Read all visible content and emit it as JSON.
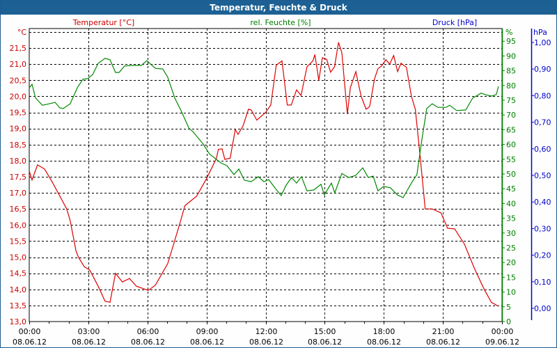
{
  "window": {
    "title": "Temperatur, Feuchte & Druck"
  },
  "chart_data": {
    "type": "line",
    "title": "Temperatur, Feuchte & Druck",
    "xlim_hours": [
      0,
      24
    ],
    "x_ticks": [
      {
        "time": "00:00",
        "date": "08.06.12"
      },
      {
        "time": "03:00",
        "date": "08.06.12"
      },
      {
        "time": "06:00",
        "date": "08.06.12"
      },
      {
        "time": "09:00",
        "date": "08.06.12"
      },
      {
        "time": "12:00",
        "date": "08.06.12"
      },
      {
        "time": "15:00",
        "date": "08.06.12"
      },
      {
        "time": "18:00",
        "date": "08.06.12"
      },
      {
        "time": "21:00",
        "date": "08.06.12"
      },
      {
        "time": "00:00",
        "date": "09.06.12"
      }
    ],
    "axes": {
      "temperature": {
        "label": "Temperatur [°C]",
        "unit": "°C",
        "ylim": [
          13.0,
          22.0
        ],
        "ticks": [
          "13,0",
          "13,5",
          "14,0",
          "14,5",
          "15,0",
          "15,5",
          "16,0",
          "16,5",
          "17,0",
          "17,5",
          "18,0",
          "18,5",
          "19,0",
          "19,5",
          "20,0",
          "20,5",
          "21,0",
          "21,5"
        ],
        "color": "#cc0000"
      },
      "humidity": {
        "label": "rel. Feuchte [%]",
        "unit": "%",
        "ylim": [
          0,
          100
        ],
        "ticks": [
          "0",
          "5",
          "10",
          "15",
          "20",
          "25",
          "30",
          "35",
          "40",
          "45",
          "50",
          "55",
          "60",
          "65",
          "70",
          "75",
          "80",
          "85",
          "90",
          "95"
        ],
        "color": "#008000"
      },
      "pressure": {
        "label": "Druck [hPa]",
        "unit": "hPa",
        "ylim": [
          0,
          1.0
        ],
        "ticks": [
          "0,00",
          "0,10",
          "0,20",
          "0,30",
          "0,40",
          "0,50",
          "0,60",
          "0,70",
          "0,80",
          "0,90",
          "1,00"
        ],
        "color": "#0000cc"
      }
    },
    "grid": true,
    "series": [
      {
        "name": "Temperatur [°C]",
        "axis": "temperature",
        "color": "#dd0000",
        "points": [
          [
            0,
            17.68
          ],
          [
            0.14,
            17.4
          ],
          [
            0.42,
            17.87
          ],
          [
            0.78,
            17.74
          ],
          [
            1.2,
            17.3
          ],
          [
            1.55,
            16.9
          ],
          [
            1.9,
            16.5
          ],
          [
            2.08,
            16.14
          ],
          [
            2.37,
            15.2
          ],
          [
            2.5,
            15.0
          ],
          [
            2.8,
            14.7
          ],
          [
            3.07,
            14.6
          ],
          [
            3.5,
            14.1
          ],
          [
            3.85,
            13.63
          ],
          [
            4.1,
            13.6
          ],
          [
            4.38,
            14.5
          ],
          [
            4.73,
            14.23
          ],
          [
            5.09,
            14.34
          ],
          [
            5.44,
            14.1
          ],
          [
            6.04,
            13.97
          ],
          [
            6.4,
            14.13
          ],
          [
            7.03,
            14.8
          ],
          [
            7.4,
            15.55
          ],
          [
            7.67,
            16.1
          ],
          [
            7.9,
            16.6
          ],
          [
            8.5,
            16.9
          ],
          [
            9.0,
            17.44
          ],
          [
            9.5,
            18.07
          ],
          [
            9.6,
            18.35
          ],
          [
            9.79,
            18.37
          ],
          [
            9.93,
            18.04
          ],
          [
            10.2,
            18.08
          ],
          [
            10.46,
            18.97
          ],
          [
            10.6,
            18.82
          ],
          [
            10.85,
            19.08
          ],
          [
            11.13,
            19.6
          ],
          [
            11.27,
            19.58
          ],
          [
            11.55,
            19.26
          ],
          [
            12.0,
            19.5
          ],
          [
            12.26,
            19.73
          ],
          [
            12.54,
            20.97
          ],
          [
            12.83,
            21.1
          ],
          [
            13.1,
            19.73
          ],
          [
            13.3,
            19.73
          ],
          [
            13.57,
            20.2
          ],
          [
            13.8,
            20.03
          ],
          [
            14.1,
            20.92
          ],
          [
            14.4,
            21.1
          ],
          [
            14.5,
            21.3
          ],
          [
            14.7,
            20.5
          ],
          [
            14.88,
            21.2
          ],
          [
            15.1,
            21.15
          ],
          [
            15.3,
            20.75
          ],
          [
            15.5,
            20.92
          ],
          [
            15.7,
            21.68
          ],
          [
            15.87,
            21.35
          ],
          [
            16.15,
            19.45
          ],
          [
            16.3,
            20.27
          ],
          [
            16.58,
            20.77
          ],
          [
            16.85,
            20.0
          ],
          [
            17.1,
            19.6
          ],
          [
            17.28,
            19.68
          ],
          [
            17.53,
            20.55
          ],
          [
            17.7,
            20.86
          ],
          [
            17.9,
            20.95
          ],
          [
            18.1,
            21.14
          ],
          [
            18.3,
            21.0
          ],
          [
            18.5,
            21.27
          ],
          [
            18.7,
            20.77
          ],
          [
            18.87,
            21.03
          ],
          [
            19.15,
            20.9
          ],
          [
            19.4,
            20.0
          ],
          [
            19.6,
            19.6
          ],
          [
            19.85,
            18.1
          ],
          [
            20.1,
            16.5
          ],
          [
            20.46,
            16.5
          ],
          [
            20.9,
            16.38
          ],
          [
            21.24,
            15.9
          ],
          [
            21.6,
            15.88
          ],
          [
            22.1,
            15.4
          ],
          [
            22.6,
            14.65
          ],
          [
            23.1,
            14.0
          ],
          [
            23.46,
            13.6
          ],
          [
            23.8,
            13.48
          ]
        ]
      },
      {
        "name": "rel. Feuchte [%]",
        "axis": "humidity",
        "color": "#008800",
        "points": [
          [
            0,
            79.2
          ],
          [
            0.14,
            80.4
          ],
          [
            0.32,
            75.7
          ],
          [
            0.67,
            73.3
          ],
          [
            1.02,
            73.8
          ],
          [
            1.31,
            74.3
          ],
          [
            1.55,
            72.4
          ],
          [
            1.73,
            72.2
          ],
          [
            2.08,
            73.8
          ],
          [
            2.44,
            79.2
          ],
          [
            2.72,
            82.1
          ],
          [
            2.97,
            82.3
          ],
          [
            3.22,
            83.7
          ],
          [
            3.5,
            87.5
          ],
          [
            3.85,
            89.2
          ],
          [
            4.1,
            88.7
          ],
          [
            4.38,
            84.4
          ],
          [
            4.56,
            84.4
          ],
          [
            4.84,
            86.6
          ],
          [
            5.27,
            86.8
          ],
          [
            5.69,
            86.8
          ],
          [
            5.97,
            88.4
          ],
          [
            6.4,
            85.8
          ],
          [
            6.78,
            85.6
          ],
          [
            7.03,
            82.8
          ],
          [
            7.39,
            75.7
          ],
          [
            7.74,
            71.0
          ],
          [
            8.1,
            65.6
          ],
          [
            8.3,
            64.4
          ],
          [
            8.8,
            60.4
          ],
          [
            9.15,
            56.8
          ],
          [
            9.72,
            53.8
          ],
          [
            10.04,
            52.8
          ],
          [
            10.39,
            49.8
          ],
          [
            10.64,
            51.7
          ],
          [
            10.92,
            47.9
          ],
          [
            11.27,
            47.4
          ],
          [
            11.63,
            49.1
          ],
          [
            11.91,
            47.4
          ],
          [
            12.16,
            48.1
          ],
          [
            12.51,
            45.0
          ],
          [
            12.79,
            42.7
          ],
          [
            13.04,
            46.2
          ],
          [
            13.32,
            48.8
          ],
          [
            13.57,
            46.9
          ],
          [
            13.82,
            49.1
          ],
          [
            14.1,
            44.3
          ],
          [
            14.45,
            44.6
          ],
          [
            14.81,
            46.5
          ],
          [
            14.98,
            42.9
          ],
          [
            15.34,
            46.9
          ],
          [
            15.51,
            43.6
          ],
          [
            15.87,
            50.2
          ],
          [
            16.22,
            48.8
          ],
          [
            16.57,
            49.5
          ],
          [
            16.93,
            52.1
          ],
          [
            17.21,
            48.8
          ],
          [
            17.46,
            49.3
          ],
          [
            17.7,
            44.3
          ],
          [
            17.99,
            45.8
          ],
          [
            18.34,
            45.3
          ],
          [
            18.69,
            42.9
          ],
          [
            18.98,
            42.0
          ],
          [
            19.4,
            46.9
          ],
          [
            19.68,
            49.8
          ],
          [
            19.93,
            61.6
          ],
          [
            20.18,
            72.2
          ],
          [
            20.46,
            73.8
          ],
          [
            20.74,
            72.6
          ],
          [
            21.17,
            72.6
          ],
          [
            21.34,
            73.3
          ],
          [
            21.7,
            71.5
          ],
          [
            22.16,
            71.7
          ],
          [
            22.51,
            75.7
          ],
          [
            22.94,
            77.4
          ],
          [
            23.14,
            76.9
          ],
          [
            23.46,
            76.4
          ],
          [
            23.71,
            76.9
          ],
          [
            23.82,
            79.7
          ]
        ]
      },
      {
        "name": "Druck [hPa]",
        "axis": "pressure",
        "color": "#0000cc",
        "points": []
      }
    ]
  }
}
